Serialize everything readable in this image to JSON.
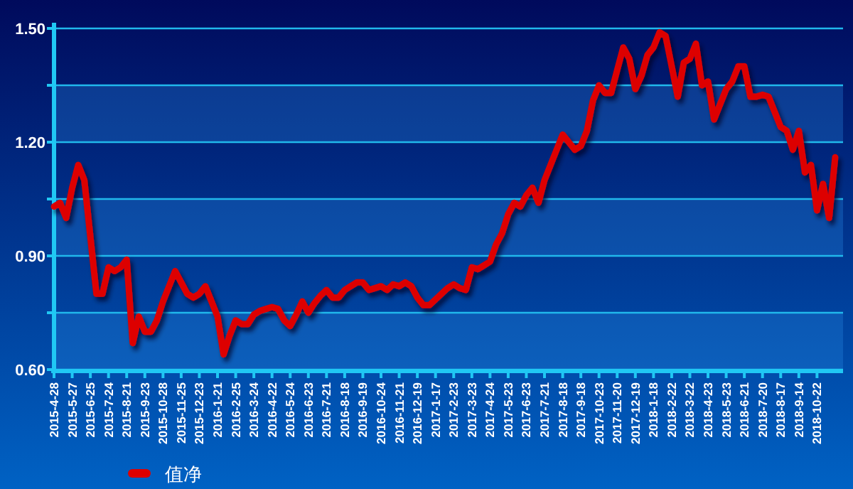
{
  "chart_data": {
    "type": "line",
    "categories": [
      "2015-4-28",
      null,
      null,
      "2015-5-27",
      null,
      null,
      "2015-6-25",
      null,
      null,
      "2015-7-24",
      null,
      null,
      "2015-8-21",
      null,
      null,
      "2015-9-23",
      null,
      null,
      "2015-10-28",
      null,
      null,
      "2015-11-25",
      null,
      null,
      "2015-12-23",
      null,
      null,
      "2016-1-21",
      null,
      null,
      "2016-2-25",
      null,
      null,
      "2016-3-24",
      null,
      null,
      "2016-4-22",
      null,
      null,
      "2016-5-24",
      null,
      null,
      "2016-6-23",
      null,
      null,
      "2016-7-21",
      null,
      null,
      "2016-8-18",
      null,
      null,
      "2016-9-19",
      null,
      null,
      "2016-10-24",
      null,
      null,
      "2016-11-21",
      null,
      null,
      "2016-12-19",
      null,
      null,
      "2017-1-17",
      null,
      null,
      "2017-2-23",
      null,
      null,
      "2017-3-23",
      null,
      null,
      "2017-4-24",
      null,
      null,
      "2017-5-23",
      null,
      null,
      "2017-6-23",
      null,
      null,
      "2017-7-21",
      null,
      null,
      "2017-8-18",
      null,
      null,
      "2017-9-18",
      null,
      null,
      "2017-10-23",
      null,
      null,
      "2017-11-20",
      null,
      null,
      "2017-12-19",
      null,
      null,
      "2018-1-18",
      null,
      null,
      "2018-2-22",
      null,
      null,
      "2018-3-22",
      null,
      null,
      "2018-4-23",
      null,
      null,
      "2018-5-23",
      null,
      null,
      "2018-6-21",
      null,
      null,
      "2018-7-20",
      null,
      null,
      "2018-8-17",
      null,
      null,
      "2018-9-14",
      null,
      null,
      "2018-10-22",
      null,
      null,
      null
    ],
    "series": [
      {
        "name": "值净",
        "color": "#dd0000",
        "values": [
          1.03,
          1.04,
          1.0,
          1.08,
          1.14,
          1.1,
          0.95,
          0.8,
          0.8,
          0.87,
          0.86,
          0.87,
          0.89,
          0.67,
          0.74,
          0.7,
          0.7,
          0.73,
          0.78,
          0.82,
          0.86,
          0.83,
          0.8,
          0.79,
          0.8,
          0.82,
          0.78,
          0.74,
          0.64,
          0.69,
          0.73,
          0.72,
          0.72,
          0.745,
          0.755,
          0.76,
          0.765,
          0.76,
          0.73,
          0.715,
          0.745,
          0.78,
          0.75,
          0.775,
          0.795,
          0.81,
          0.79,
          0.79,
          0.81,
          0.82,
          0.83,
          0.83,
          0.81,
          0.815,
          0.82,
          0.81,
          0.825,
          0.82,
          0.83,
          0.82,
          0.79,
          0.77,
          0.77,
          0.785,
          0.8,
          0.815,
          0.825,
          0.815,
          0.81,
          0.87,
          0.865,
          0.875,
          0.885,
          0.93,
          0.96,
          1.01,
          1.04,
          1.03,
          1.06,
          1.08,
          1.04,
          1.1,
          1.14,
          1.18,
          1.22,
          1.2,
          1.18,
          1.19,
          1.23,
          1.31,
          1.35,
          1.33,
          1.33,
          1.39,
          1.45,
          1.42,
          1.34,
          1.375,
          1.43,
          1.45,
          1.49,
          1.48,
          1.4,
          1.32,
          1.41,
          1.42,
          1.46,
          1.35,
          1.36,
          1.26,
          1.3,
          1.34,
          1.36,
          1.4,
          1.4,
          1.32,
          1.32,
          1.325,
          1.32,
          1.28,
          1.24,
          1.23,
          1.18,
          1.23,
          1.12,
          1.14,
          1.02,
          1.09,
          1.0,
          1.16
        ]
      }
    ],
    "ylim": [
      0.6,
      1.5
    ],
    "yticks": [
      {
        "value": 0.6,
        "label": "0.60"
      },
      {
        "value": 0.75,
        "label": null
      },
      {
        "value": 0.9,
        "label": "0.90"
      },
      {
        "value": 1.05,
        "label": null
      },
      {
        "value": 1.2,
        "label": "1.20"
      },
      {
        "value": 1.35,
        "label": null
      },
      {
        "value": 1.5,
        "label": "1.50"
      }
    ],
    "bands": [
      {
        "axis": "y",
        "from": 0.6,
        "to": 0.75,
        "color": "#288ce6"
      },
      {
        "axis": "y",
        "from": 0.9,
        "to": 1.05,
        "color": "#288ce6"
      },
      {
        "axis": "y",
        "from": 1.2,
        "to": 1.35,
        "color": "#288ce6"
      }
    ],
    "grid": "y",
    "legend": "bottom left",
    "marker": "none",
    "line_style": "solid"
  }
}
